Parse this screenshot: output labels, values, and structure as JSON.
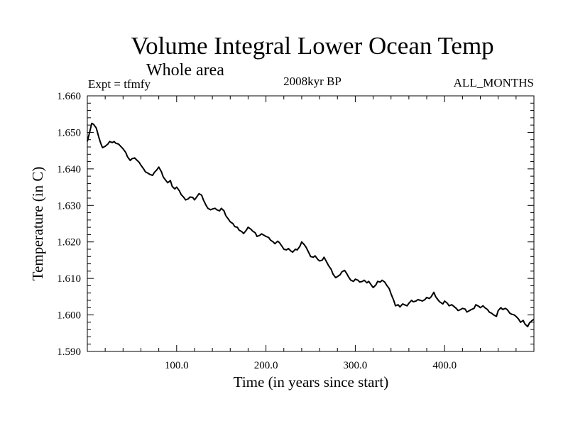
{
  "chart_data": {
    "type": "line",
    "title": "Volume Integral Lower Ocean Temp",
    "subtitle": "Whole area",
    "annotations": {
      "left": "Expt = tfmfy",
      "center": "2008kyr BP",
      "right": "ALL_MONTHS"
    },
    "xlabel": "Time (in years since start)",
    "ylabel": "Temperature (in C)",
    "xlim": [
      0,
      500
    ],
    "ylim": [
      1.59,
      1.66
    ],
    "xticks": [
      100,
      200,
      300,
      400
    ],
    "xtick_labels": [
      "100.0",
      "200.0",
      "300.0",
      "400.0"
    ],
    "yticks": [
      1.59,
      1.6,
      1.61,
      1.62,
      1.63,
      1.64,
      1.65,
      1.66
    ],
    "ytick_labels": [
      "1.590",
      "1.600",
      "1.610",
      "1.620",
      "1.630",
      "1.640",
      "1.650",
      "1.660"
    ],
    "grid": false,
    "series": [
      {
        "name": "tfmfy",
        "color": "#000000",
        "x": [
          0,
          3,
          5,
          7,
          10,
          13,
          15,
          17,
          20,
          23,
          25,
          28,
          30,
          32,
          35,
          38,
          40,
          43,
          45,
          48,
          50,
          53,
          55,
          58,
          60,
          63,
          65,
          68,
          70,
          73,
          75,
          78,
          80,
          83,
          85,
          88,
          90,
          93,
          95,
          98,
          100,
          103,
          105,
          108,
          110,
          113,
          115,
          118,
          120,
          123,
          125,
          128,
          130,
          133,
          135,
          138,
          140,
          143,
          145,
          148,
          150,
          153,
          155,
          158,
          160,
          163,
          165,
          168,
          170,
          173,
          175,
          178,
          180,
          183,
          185,
          188,
          190,
          193,
          195,
          198,
          200,
          203,
          205,
          208,
          210,
          213,
          215,
          218,
          220,
          223,
          225,
          228,
          230,
          233,
          235,
          238,
          240,
          243,
          245,
          248,
          250,
          253,
          255,
          258,
          260,
          263,
          265,
          268,
          270,
          273,
          275,
          278,
          280,
          283,
          285,
          288,
          290,
          293,
          295,
          298,
          300,
          303,
          305,
          308,
          310,
          313,
          315,
          318,
          320,
          323,
          325,
          328,
          330,
          333,
          335,
          338,
          340,
          343,
          345,
          348,
          350,
          353,
          355,
          358,
          360,
          363,
          365,
          368,
          370,
          373,
          375,
          378,
          380,
          383,
          385,
          388,
          390,
          393,
          395,
          398,
          400,
          403,
          405,
          408,
          410,
          413,
          415,
          418,
          420,
          423,
          425,
          428,
          430,
          433,
          435,
          438,
          440,
          443,
          445,
          448,
          450,
          453,
          455,
          458,
          460,
          463,
          465,
          468,
          470,
          473,
          475,
          478,
          480,
          483,
          485,
          488,
          490,
          493,
          495,
          498,
          500
        ],
        "y": [
          1.6475,
          1.6505,
          1.6525,
          1.6522,
          1.6512,
          1.6485,
          1.647,
          1.6458,
          1.6462,
          1.6468,
          1.6475,
          1.6472,
          1.6475,
          1.647,
          1.6468,
          1.646,
          1.6455,
          1.6445,
          1.6433,
          1.6423,
          1.6428,
          1.643,
          1.6425,
          1.6418,
          1.641,
          1.64,
          1.6392,
          1.6388,
          1.6385,
          1.6382,
          1.639,
          1.6398,
          1.6405,
          1.6392,
          1.6378,
          1.6368,
          1.6362,
          1.6368,
          1.6352,
          1.6345,
          1.635,
          1.634,
          1.633,
          1.6322,
          1.6315,
          1.6318,
          1.6323,
          1.6322,
          1.6315,
          1.6325,
          1.6332,
          1.6328,
          1.6315,
          1.63,
          1.6292,
          1.6288,
          1.629,
          1.6292,
          1.6288,
          1.6285,
          1.6292,
          1.6285,
          1.6272,
          1.6262,
          1.6255,
          1.625,
          1.6242,
          1.624,
          1.6232,
          1.6228,
          1.6223,
          1.6232,
          1.624,
          1.6235,
          1.623,
          1.6225,
          1.6215,
          1.6218,
          1.6222,
          1.6218,
          1.6215,
          1.6212,
          1.6205,
          1.62,
          1.6195,
          1.6202,
          1.6198,
          1.6188,
          1.618,
          1.6178,
          1.6182,
          1.6175,
          1.6172,
          1.618,
          1.6178,
          1.6188,
          1.62,
          1.6192,
          1.6185,
          1.617,
          1.616,
          1.6158,
          1.6162,
          1.6152,
          1.6148,
          1.615,
          1.6158,
          1.6145,
          1.6135,
          1.6125,
          1.6112,
          1.6102,
          1.6105,
          1.611,
          1.6118,
          1.6122,
          1.6115,
          1.6102,
          1.6095,
          1.6092,
          1.6098,
          1.6095,
          1.609,
          1.6092,
          1.6095,
          1.6088,
          1.6092,
          1.6082,
          1.6075,
          1.6082,
          1.6092,
          1.609,
          1.6095,
          1.609,
          1.6082,
          1.6072,
          1.6058,
          1.604,
          1.6025,
          1.6028,
          1.6022,
          1.603,
          1.6028,
          1.6025,
          1.6032,
          1.604,
          1.6036,
          1.6038,
          1.6042,
          1.604,
          1.6038,
          1.6042,
          1.6048,
          1.6045,
          1.605,
          1.6062,
          1.605,
          1.604,
          1.6035,
          1.603,
          1.6038,
          1.6032,
          1.6025,
          1.6028,
          1.6024,
          1.6018,
          1.6012,
          1.6015,
          1.6018,
          1.6016,
          1.6008,
          1.6012,
          1.6015,
          1.6018,
          1.6028,
          1.6024,
          1.602,
          1.6025,
          1.602,
          1.6015,
          1.6008,
          1.6004,
          1.6,
          1.5996,
          1.6012,
          1.602,
          1.6015,
          1.6018,
          1.6015,
          1.6005,
          1.6002,
          1.6,
          1.5996,
          1.5988,
          1.598,
          1.5985,
          1.5975,
          1.5968,
          1.5978,
          1.5985,
          1.5988
        ]
      }
    ]
  }
}
